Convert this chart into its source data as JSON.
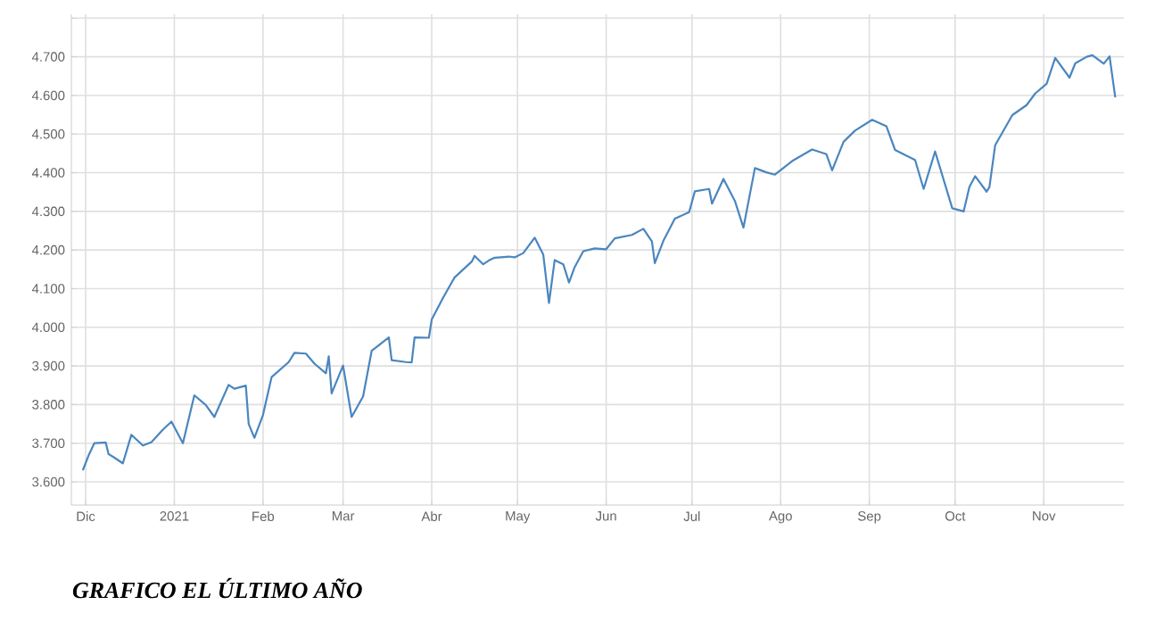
{
  "chart_data": {
    "type": "line",
    "title": "GRAFICO EL ÚLTIMO AÑO",
    "grid": true,
    "legend": false,
    "marker": "none",
    "line_style": "solid",
    "xlim": [
      "2020-11-26",
      "2021-11-29"
    ],
    "ylim": [
      3540,
      4810
    ],
    "xticks": [
      {
        "value": "2020-12-01",
        "label": "Dic"
      },
      {
        "value": "2021-01-01",
        "label": "2021"
      },
      {
        "value": "2021-02-01",
        "label": "Feb"
      },
      {
        "value": "2021-03-01",
        "label": "Mar"
      },
      {
        "value": "2021-04-01",
        "label": "Abr"
      },
      {
        "value": "2021-05-01",
        "label": "May"
      },
      {
        "value": "2021-06-01",
        "label": "Jun"
      },
      {
        "value": "2021-07-01",
        "label": "Jul"
      },
      {
        "value": "2021-08-01",
        "label": "Ago"
      },
      {
        "value": "2021-09-01",
        "label": "Sep"
      },
      {
        "value": "2021-10-01",
        "label": "Oct"
      },
      {
        "value": "2021-11-01",
        "label": "Nov"
      }
    ],
    "yticks": [
      {
        "value": 3600,
        "label": "3.600"
      },
      {
        "value": 3700,
        "label": "3.700"
      },
      {
        "value": 3800,
        "label": "3.800"
      },
      {
        "value": 3900,
        "label": "3.900"
      },
      {
        "value": 4000,
        "label": "4.000"
      },
      {
        "value": 4100,
        "label": "4.100"
      },
      {
        "value": 4200,
        "label": "4.200"
      },
      {
        "value": 4300,
        "label": "4.300"
      },
      {
        "value": 4400,
        "label": "4.400"
      },
      {
        "value": 4500,
        "label": "4.500"
      },
      {
        "value": 4600,
        "label": "4.600"
      },
      {
        "value": 4700,
        "label": "4.700"
      },
      {
        "value": 4800,
        "label": null
      }
    ],
    "series": [
      {
        "color": "#4a86bf",
        "x": [
          "2020-11-30",
          "2020-12-02",
          "2020-12-04",
          "2020-12-08",
          "2020-12-09",
          "2020-12-11",
          "2020-12-14",
          "2020-12-17",
          "2020-12-21",
          "2020-12-24",
          "2020-12-28",
          "2020-12-31",
          "2021-01-04",
          "2021-01-08",
          "2021-01-12",
          "2021-01-15",
          "2021-01-20",
          "2021-01-22",
          "2021-01-26",
          "2021-01-27",
          "2021-01-29",
          "2021-02-01",
          "2021-02-04",
          "2021-02-10",
          "2021-02-12",
          "2021-02-16",
          "2021-02-19",
          "2021-02-23",
          "2021-02-24",
          "2021-02-25",
          "2021-03-01",
          "2021-03-04",
          "2021-03-08",
          "2021-03-11",
          "2021-03-17",
          "2021-03-18",
          "2021-03-23",
          "2021-03-25",
          "2021-03-26",
          "2021-03-31",
          "2021-04-01",
          "2021-04-05",
          "2021-04-09",
          "2021-04-15",
          "2021-04-16",
          "2021-04-19",
          "2021-04-21",
          "2021-04-23",
          "2021-04-28",
          "2021-04-30",
          "2021-05-03",
          "2021-05-07",
          "2021-05-10",
          "2021-05-12",
          "2021-05-14",
          "2021-05-17",
          "2021-05-19",
          "2021-05-21",
          "2021-05-24",
          "2021-05-28",
          "2021-06-01",
          "2021-06-04",
          "2021-06-10",
          "2021-06-14",
          "2021-06-17",
          "2021-06-18",
          "2021-06-21",
          "2021-06-25",
          "2021-06-30",
          "2021-07-02",
          "2021-07-07",
          "2021-07-08",
          "2021-07-12",
          "2021-07-16",
          "2021-07-19",
          "2021-07-23",
          "2021-07-27",
          "2021-07-30",
          "2021-08-05",
          "2021-08-12",
          "2021-08-17",
          "2021-08-19",
          "2021-08-23",
          "2021-08-27",
          "2021-09-02",
          "2021-09-07",
          "2021-09-10",
          "2021-09-14",
          "2021-09-17",
          "2021-09-20",
          "2021-09-24",
          "2021-09-30",
          "2021-10-04",
          "2021-10-06",
          "2021-10-08",
          "2021-10-12",
          "2021-10-13",
          "2021-10-15",
          "2021-10-21",
          "2021-10-26",
          "2021-10-29",
          "2021-11-02",
          "2021-11-05",
          "2021-11-10",
          "2021-11-12",
          "2021-11-16",
          "2021-11-18",
          "2021-11-22",
          "2021-11-24",
          "2021-11-26"
        ],
        "values": [
          3630,
          3668,
          3700,
          3702,
          3672,
          3663,
          3648,
          3722,
          3694,
          3703,
          3735,
          3756,
          3700,
          3824,
          3799,
          3768,
          3851,
          3841,
          3849,
          3750,
          3714,
          3773,
          3871,
          3910,
          3934,
          3932,
          3906,
          3881,
          3925,
          3829,
          3901,
          3768,
          3821,
          3939,
          3974,
          3915,
          3910,
          3909,
          3974,
          3973,
          4020,
          4077,
          4129,
          4170,
          4185,
          4163,
          4173,
          4180,
          4183,
          4181,
          4192,
          4232,
          4188,
          4063,
          4174,
          4163,
          4116,
          4156,
          4197,
          4204,
          4202,
          4230,
          4239,
          4255,
          4222,
          4166,
          4224,
          4281,
          4298,
          4352,
          4358,
          4320,
          4384,
          4327,
          4258,
          4412,
          4401,
          4395,
          4430,
          4460,
          4448,
          4406,
          4480,
          4509,
          4537,
          4520,
          4459,
          4444,
          4433,
          4358,
          4455,
          4308,
          4300,
          4363,
          4391,
          4351,
          4363,
          4471,
          4549,
          4575,
          4605,
          4630,
          4697,
          4646,
          4683,
          4700,
          4704,
          4682,
          4701,
          4595
        ]
      }
    ]
  }
}
